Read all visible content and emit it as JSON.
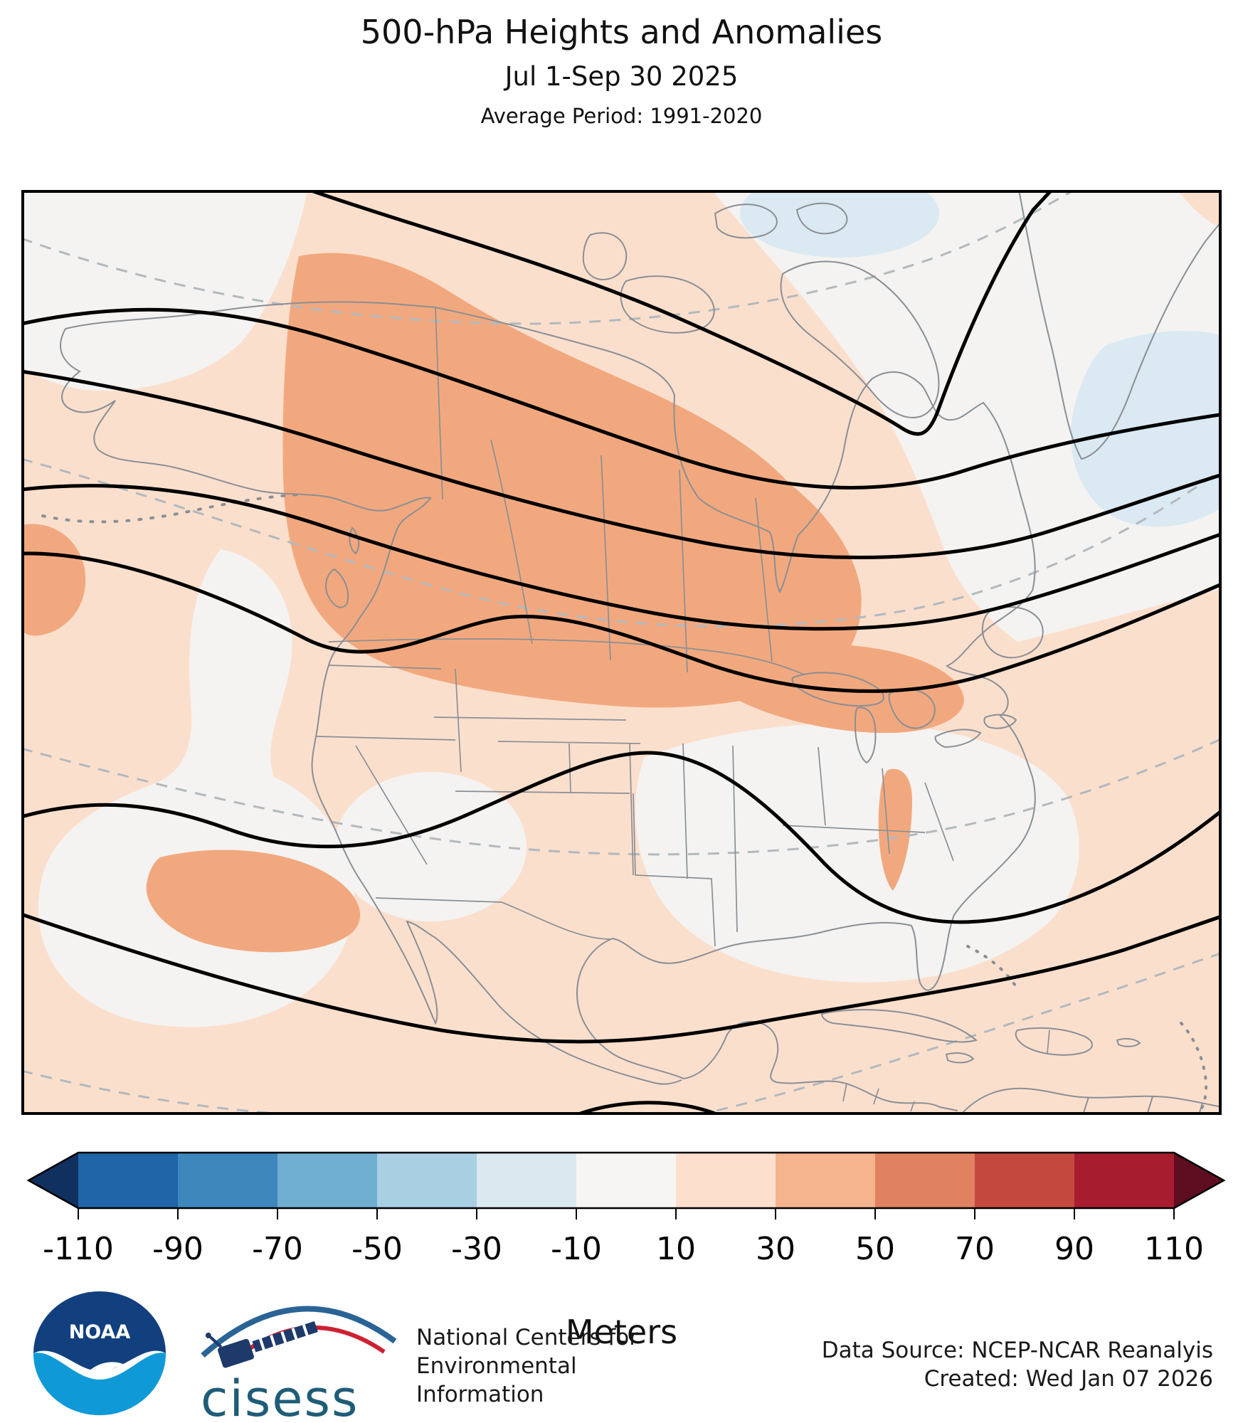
{
  "header": {
    "title": "500-hPa Heights and Anomalies",
    "subtitle": "Jul 1-Sep 30 2025",
    "average_period": "Average Period: 1991-2020"
  },
  "colorbar": {
    "label": "Meters",
    "ticks": [
      -110,
      -90,
      -70,
      -50,
      -30,
      -10,
      10,
      30,
      50,
      70,
      90,
      110
    ],
    "colors": [
      "#10305f",
      "#2065a8",
      "#3d87bd",
      "#6fadd1",
      "#a9cfe3",
      "#dae8f0",
      "#f6f5f4",
      "#fcdfcc",
      "#f5b38e",
      "#e0815f",
      "#c5483f",
      "#a81c30",
      "#5f0d20"
    ],
    "extend": "both"
  },
  "map": {
    "fills": {
      "anomaly_pos_10_30": "#fbdfcd",
      "anomaly_pos_30_50": "#f2a87e",
      "anomaly_neutral_m10_p10": "#f4f3f1",
      "anomaly_neg_30_10": "#dae9f2"
    },
    "lines": {
      "height_contour": "#000000",
      "climatology_contour": "#b3b9bd",
      "coastline": "#8a8f94",
      "frame": "#000000"
    }
  },
  "chart_data": {
    "type": "heatmap",
    "title": "500-hPa Heights and Anomalies",
    "subtitle": "Jul 1-Sep 30 2025",
    "baseline_period": "Average Period: 1991-2020",
    "units": "Meters",
    "legend_position": "bottom",
    "colorbar_ticks": [
      -110,
      -90,
      -70,
      -50,
      -30,
      -10,
      10,
      30,
      50,
      70,
      90,
      110
    ],
    "overlays": [
      "500-hPa mean height contours (solid black)",
      "climatological height contours (dashed gray)"
    ],
    "region_anomalies": [
      {
        "region": "Western and central Canada (BC, Prairies, toward Hudson Bay)",
        "anomaly_m": "+30 to +50"
      },
      {
        "region": "Pacific Northwest (Washington, southern British Columbia)",
        "anomaly_m": "+30 to +50"
      },
      {
        "region": "Southern Ontario / Quebec, St. Lawrence valley",
        "anomaly_m": "+30 to +50"
      },
      {
        "region": "Subtropical eastern Pacific patch southwest of Baja",
        "anomaly_m": "+30 to +50"
      },
      {
        "region": "Most of CONUS, Mexico, Caribbean, western Atlantic, North Pacific",
        "anomaly_m": "+10 to +30"
      },
      {
        "region": "Northern Alaska, Canadian Arctic, Greenland, Labrador, US Southeast, California coast, central North Pacific",
        "anomaly_m": "-10 to +10"
      },
      {
        "region": "Atlantic east of Greenland and high-Arctic patches",
        "anomaly_m": "-30 to -10"
      }
    ]
  },
  "footer": {
    "ncei_line1": "National Centers for",
    "ncei_line2": "Environmental",
    "ncei_line3": "Information",
    "data_source": "Data Source: NCEP-NCAR Reanalyis",
    "created": "Created: Wed Jan 07 2026",
    "noaa_label": "NOAA",
    "cisess_label": "cisess"
  }
}
